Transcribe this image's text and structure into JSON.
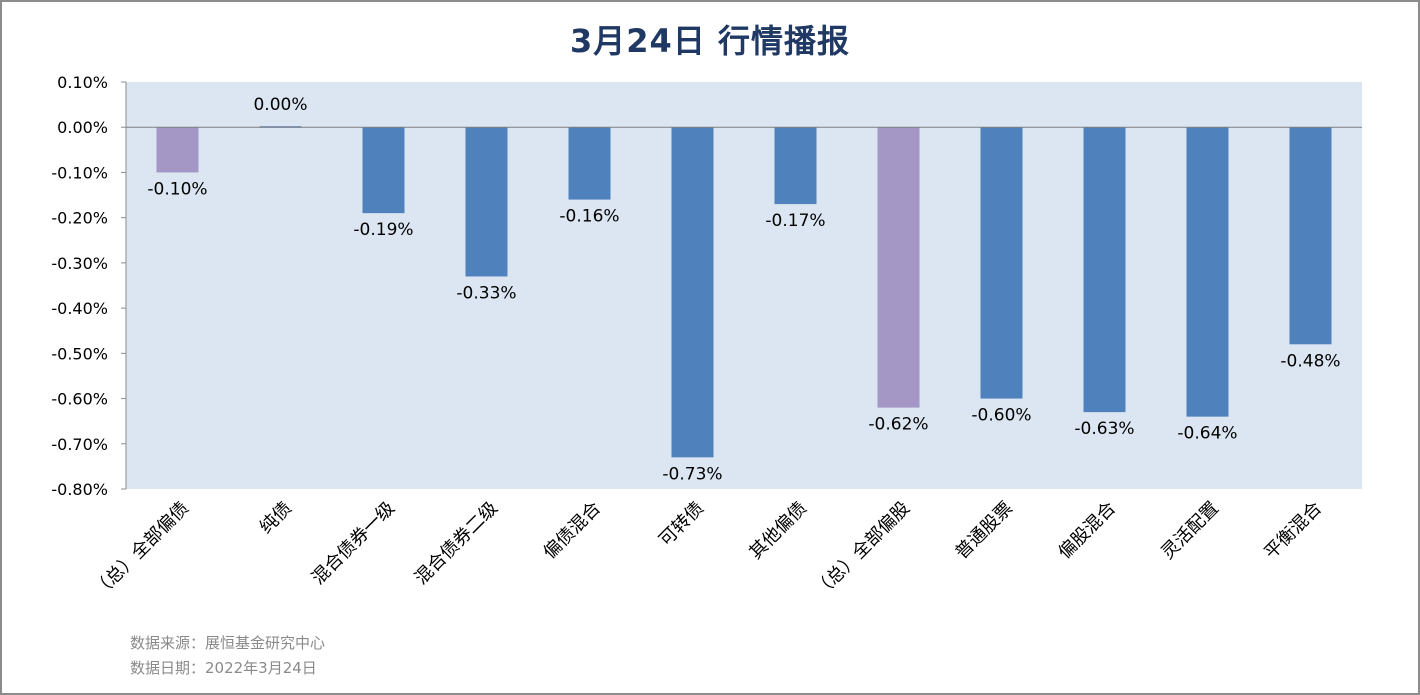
{
  "title": "3月24日  行情播报",
  "footer": {
    "source": "数据来源：展恒基金研究中心",
    "date": "数据日期：2022年3月24日"
  },
  "colors": {
    "plot_background": "#dce6f2",
    "bar_default": "#4f81bd",
    "bar_highlight": "#a597c5",
    "title": "#1f3864"
  },
  "chart_data": {
    "type": "bar",
    "title": "3月24日  行情播报",
    "xlabel": "",
    "ylabel": "",
    "ylim": [
      -0.8,
      0.1
    ],
    "yticks": [
      0.1,
      0.0,
      -0.1,
      -0.2,
      -0.3,
      -0.4,
      -0.5,
      -0.6,
      -0.7,
      -0.8
    ],
    "ytick_labels": [
      "0.10%",
      "0.00%",
      "-0.10%",
      "-0.20%",
      "-0.30%",
      "-0.40%",
      "-0.50%",
      "-0.60%",
      "-0.70%",
      "-0.80%"
    ],
    "grid": false,
    "legend": "none",
    "categories": [
      "（总）全部偏债",
      "纯债",
      "混合债券一级",
      "混合债券二级",
      "偏债混合",
      "可转债",
      "其他偏债",
      "（总）全部偏股",
      "普通股票",
      "偏股混合",
      "灵活配置",
      "平衡混合"
    ],
    "values": [
      -0.1,
      0.0,
      -0.19,
      -0.33,
      -0.16,
      -0.73,
      -0.17,
      -0.62,
      -0.6,
      -0.63,
      -0.64,
      -0.48
    ],
    "data_labels": [
      "-0.10%",
      "0.00%",
      "-0.19%",
      "-0.33%",
      "-0.16%",
      "-0.73%",
      "-0.17%",
      "-0.62%",
      "-0.60%",
      "-0.63%",
      "-0.64%",
      "-0.48%"
    ],
    "highlight_categories": [
      "（总）全部偏债",
      "（总）全部偏股"
    ]
  }
}
